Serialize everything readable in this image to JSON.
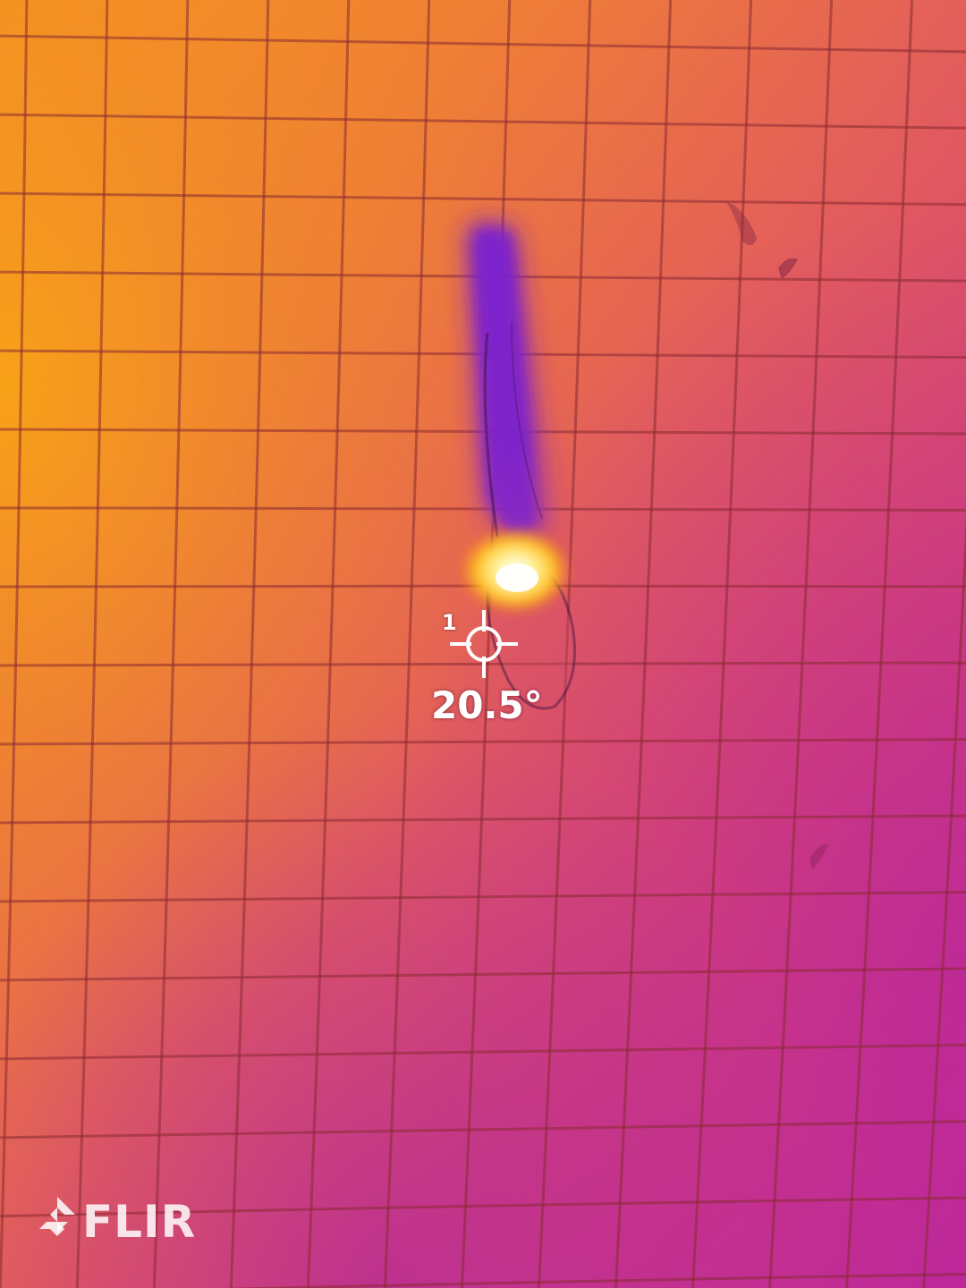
{
  "measurement": {
    "spot_label": "1",
    "temperature": "20.5°"
  },
  "branding": {
    "logo_text": "FLIR"
  },
  "palette": {
    "warm": "#f79a1a",
    "mid": "#e45c5e",
    "cool": "#c0309a",
    "cold": "#8a22c8",
    "hot": "#fffbe0"
  }
}
